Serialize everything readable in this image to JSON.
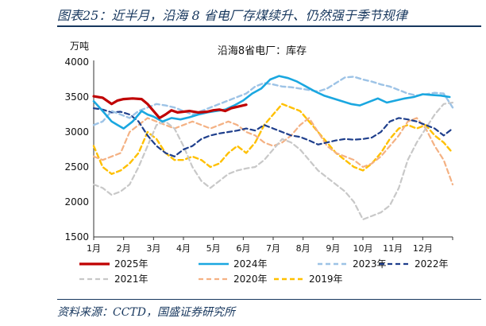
{
  "header": {
    "title": "图表25：近半月，沿海 8 省电厂存煤续升、仍然强于季节规律"
  },
  "footer": {
    "source": "资料来源：CCTD，国盛证券研究所"
  },
  "chart_data": {
    "type": "line",
    "title": "沿海8省电厂：库存",
    "ylabel": "万吨",
    "ylim": [
      1500,
      4000
    ],
    "yticks": [
      "1500",
      "2000",
      "2500",
      "3000",
      "3500",
      "4000"
    ],
    "categories": [
      "1月",
      "2月",
      "3月",
      "4月",
      "5月",
      "6月",
      "7月",
      "8月",
      "9月",
      "10月",
      "11月",
      "12月"
    ],
    "series": [
      {
        "name": "2025年",
        "color": "#c00000",
        "dash": "solid",
        "width": 3.2,
        "points": [
          [
            0,
            3510
          ],
          [
            0.3,
            3490
          ],
          [
            0.6,
            3400
          ],
          [
            0.8,
            3450
          ],
          [
            1.0,
            3470
          ],
          [
            1.3,
            3480
          ],
          [
            1.6,
            3470
          ],
          [
            1.8,
            3400
          ],
          [
            2.0,
            3300
          ],
          [
            2.2,
            3200
          ],
          [
            2.4,
            3250
          ],
          [
            2.6,
            3310
          ],
          [
            2.8,
            3280
          ],
          [
            3.0,
            3290
          ],
          [
            3.2,
            3300
          ],
          [
            3.5,
            3280
          ],
          [
            3.8,
            3290
          ],
          [
            4.0,
            3310
          ],
          [
            4.2,
            3320
          ],
          [
            4.4,
            3300
          ],
          [
            4.6,
            3340
          ],
          [
            4.9,
            3370
          ],
          [
            5.1,
            3390
          ]
        ]
      },
      {
        "name": "2024年",
        "color": "#1aa7e0",
        "dash": "solid",
        "width": 2.6,
        "points": [
          [
            0,
            3440
          ],
          [
            0.3,
            3300
          ],
          [
            0.6,
            3150
          ],
          [
            0.8,
            3100
          ],
          [
            1.0,
            3050
          ],
          [
            1.3,
            3150
          ],
          [
            1.6,
            3300
          ],
          [
            1.8,
            3250
          ],
          [
            2.0,
            3220
          ],
          [
            2.3,
            3150
          ],
          [
            2.6,
            3200
          ],
          [
            2.9,
            3180
          ],
          [
            3.2,
            3210
          ],
          [
            3.5,
            3250
          ],
          [
            3.8,
            3280
          ],
          [
            4.1,
            3300
          ],
          [
            4.4,
            3320
          ],
          [
            4.7,
            3380
          ],
          [
            5.0,
            3450
          ],
          [
            5.3,
            3550
          ],
          [
            5.6,
            3620
          ],
          [
            5.9,
            3750
          ],
          [
            6.2,
            3800
          ],
          [
            6.5,
            3770
          ],
          [
            6.8,
            3720
          ],
          [
            7.1,
            3650
          ],
          [
            7.4,
            3580
          ],
          [
            7.7,
            3520
          ],
          [
            8.0,
            3480
          ],
          [
            8.3,
            3440
          ],
          [
            8.6,
            3400
          ],
          [
            8.9,
            3380
          ],
          [
            9.2,
            3430
          ],
          [
            9.5,
            3480
          ],
          [
            9.8,
            3420
          ],
          [
            10.1,
            3450
          ],
          [
            10.4,
            3480
          ],
          [
            10.7,
            3500
          ],
          [
            11.0,
            3540
          ],
          [
            11.3,
            3530
          ],
          [
            11.6,
            3520
          ],
          [
            11.9,
            3500
          ]
        ]
      },
      {
        "name": "2023年",
        "color": "#9dc3e6",
        "dash": "dash",
        "width": 2.4,
        "points": [
          [
            0,
            3100
          ],
          [
            0.3,
            3150
          ],
          [
            0.6,
            3300
          ],
          [
            0.9,
            3250
          ],
          [
            1.2,
            3200
          ],
          [
            1.5,
            3300
          ],
          [
            1.8,
            3350
          ],
          [
            2.1,
            3400
          ],
          [
            2.4,
            3380
          ],
          [
            2.7,
            3350
          ],
          [
            3.0,
            3300
          ],
          [
            3.3,
            3250
          ],
          [
            3.6,
            3300
          ],
          [
            3.9,
            3350
          ],
          [
            4.2,
            3400
          ],
          [
            4.5,
            3450
          ],
          [
            4.8,
            3500
          ],
          [
            5.1,
            3550
          ],
          [
            5.4,
            3650
          ],
          [
            5.7,
            3700
          ],
          [
            6.0,
            3680
          ],
          [
            6.3,
            3650
          ],
          [
            6.6,
            3640
          ],
          [
            6.9,
            3620
          ],
          [
            7.2,
            3600
          ],
          [
            7.5,
            3580
          ],
          [
            7.8,
            3620
          ],
          [
            8.1,
            3700
          ],
          [
            8.4,
            3780
          ],
          [
            8.7,
            3790
          ],
          [
            9.0,
            3750
          ],
          [
            9.3,
            3720
          ],
          [
            9.6,
            3680
          ],
          [
            9.9,
            3650
          ],
          [
            10.2,
            3600
          ],
          [
            10.5,
            3550
          ],
          [
            10.8,
            3520
          ],
          [
            11.1,
            3540
          ],
          [
            11.4,
            3560
          ],
          [
            11.7,
            3550
          ],
          [
            12.0,
            3350
          ]
        ]
      },
      {
        "name": "2022年",
        "color": "#1f3f8c",
        "dash": "dash",
        "width": 2.2,
        "points": [
          [
            0,
            3340
          ],
          [
            0.3,
            3320
          ],
          [
            0.6,
            3280
          ],
          [
            0.9,
            3290
          ],
          [
            1.2,
            3250
          ],
          [
            1.5,
            3150
          ],
          [
            1.8,
            2950
          ],
          [
            2.1,
            2800
          ],
          [
            2.4,
            2700
          ],
          [
            2.7,
            2650
          ],
          [
            3.0,
            2750
          ],
          [
            3.3,
            2800
          ],
          [
            3.6,
            2900
          ],
          [
            3.9,
            2950
          ],
          [
            4.2,
            2980
          ],
          [
            4.5,
            3000
          ],
          [
            4.8,
            3020
          ],
          [
            5.1,
            3050
          ],
          [
            5.4,
            3020
          ],
          [
            5.7,
            3100
          ],
          [
            6.0,
            3050
          ],
          [
            6.3,
            3000
          ],
          [
            6.6,
            2950
          ],
          [
            6.9,
            2930
          ],
          [
            7.2,
            2880
          ],
          [
            7.5,
            2820
          ],
          [
            7.8,
            2850
          ],
          [
            8.1,
            2880
          ],
          [
            8.4,
            2900
          ],
          [
            8.7,
            2890
          ],
          [
            9.0,
            2900
          ],
          [
            9.3,
            2920
          ],
          [
            9.6,
            3000
          ],
          [
            9.9,
            3150
          ],
          [
            10.2,
            3200
          ],
          [
            10.5,
            3180
          ],
          [
            10.8,
            3150
          ],
          [
            11.1,
            3100
          ],
          [
            11.4,
            3050
          ],
          [
            11.7,
            2950
          ],
          [
            12.0,
            3050
          ]
        ]
      },
      {
        "name": "2021年",
        "color": "#c8c8c8",
        "dash": "dash",
        "width": 2.2,
        "points": [
          [
            0,
            2250
          ],
          [
            0.3,
            2200
          ],
          [
            0.6,
            2100
          ],
          [
            0.9,
            2150
          ],
          [
            1.2,
            2250
          ],
          [
            1.5,
            2500
          ],
          [
            1.8,
            2800
          ],
          [
            2.1,
            3100
          ],
          [
            2.4,
            3150
          ],
          [
            2.7,
            3050
          ],
          [
            3.0,
            2800
          ],
          [
            3.3,
            2500
          ],
          [
            3.6,
            2300
          ],
          [
            3.9,
            2200
          ],
          [
            4.2,
            2300
          ],
          [
            4.5,
            2400
          ],
          [
            4.8,
            2450
          ],
          [
            5.1,
            2480
          ],
          [
            5.4,
            2500
          ],
          [
            5.7,
            2600
          ],
          [
            6.0,
            2750
          ],
          [
            6.3,
            2900
          ],
          [
            6.6,
            2850
          ],
          [
            6.9,
            2750
          ],
          [
            7.2,
            2600
          ],
          [
            7.5,
            2450
          ],
          [
            7.8,
            2350
          ],
          [
            8.1,
            2250
          ],
          [
            8.4,
            2150
          ],
          [
            8.7,
            2000
          ],
          [
            9.0,
            1750
          ],
          [
            9.3,
            1800
          ],
          [
            9.6,
            1850
          ],
          [
            9.9,
            1950
          ],
          [
            10.2,
            2200
          ],
          [
            10.5,
            2600
          ],
          [
            10.8,
            2850
          ],
          [
            11.1,
            3050
          ],
          [
            11.4,
            3250
          ],
          [
            11.7,
            3400
          ],
          [
            12.0,
            3420
          ]
        ]
      },
      {
        "name": "2020年",
        "color": "#f4b183",
        "dash": "dash",
        "width": 2.2,
        "points": [
          [
            0,
            2650
          ],
          [
            0.3,
            2600
          ],
          [
            0.6,
            2650
          ],
          [
            0.9,
            2700
          ],
          [
            1.2,
            3000
          ],
          [
            1.5,
            3100
          ],
          [
            1.8,
            3200
          ],
          [
            2.1,
            3150
          ],
          [
            2.4,
            3100
          ],
          [
            2.7,
            3050
          ],
          [
            3.0,
            3100
          ],
          [
            3.3,
            3150
          ],
          [
            3.6,
            3100
          ],
          [
            3.9,
            3050
          ],
          [
            4.2,
            3100
          ],
          [
            4.5,
            3150
          ],
          [
            4.8,
            3100
          ],
          [
            5.1,
            3000
          ],
          [
            5.4,
            2950
          ],
          [
            5.7,
            2850
          ],
          [
            6.0,
            2800
          ],
          [
            6.3,
            2850
          ],
          [
            6.6,
            2950
          ],
          [
            6.9,
            3100
          ],
          [
            7.2,
            3200
          ],
          [
            7.5,
            3000
          ],
          [
            7.8,
            2800
          ],
          [
            8.1,
            2700
          ],
          [
            8.4,
            2650
          ],
          [
            8.7,
            2600
          ],
          [
            9.0,
            2500
          ],
          [
            9.3,
            2550
          ],
          [
            9.6,
            2650
          ],
          [
            9.9,
            2800
          ],
          [
            10.2,
            2950
          ],
          [
            10.5,
            3150
          ],
          [
            10.8,
            3200
          ],
          [
            11.1,
            3050
          ],
          [
            11.4,
            2800
          ],
          [
            11.7,
            2600
          ],
          [
            12.0,
            2250
          ]
        ]
      },
      {
        "name": "2019年",
        "color": "#ffc000",
        "dash": "dash",
        "width": 2.4,
        "points": [
          [
            0,
            2800
          ],
          [
            0.3,
            2500
          ],
          [
            0.6,
            2400
          ],
          [
            0.9,
            2450
          ],
          [
            1.2,
            2550
          ],
          [
            1.5,
            2700
          ],
          [
            1.8,
            3000
          ],
          [
            2.1,
            2900
          ],
          [
            2.4,
            2700
          ],
          [
            2.7,
            2600
          ],
          [
            3.0,
            2600
          ],
          [
            3.3,
            2650
          ],
          [
            3.6,
            2600
          ],
          [
            3.9,
            2500
          ],
          [
            4.2,
            2550
          ],
          [
            4.5,
            2700
          ],
          [
            4.8,
            2800
          ],
          [
            5.1,
            2700
          ],
          [
            5.4,
            2850
          ],
          [
            5.7,
            3100
          ],
          [
            6.0,
            3250
          ],
          [
            6.3,
            3400
          ],
          [
            6.6,
            3350
          ],
          [
            6.9,
            3300
          ],
          [
            7.2,
            3150
          ],
          [
            7.5,
            3000
          ],
          [
            7.8,
            2850
          ],
          [
            8.1,
            2700
          ],
          [
            8.4,
            2600
          ],
          [
            8.7,
            2500
          ],
          [
            9.0,
            2450
          ],
          [
            9.3,
            2550
          ],
          [
            9.6,
            2700
          ],
          [
            9.9,
            2900
          ],
          [
            10.2,
            3050
          ],
          [
            10.5,
            3100
          ],
          [
            10.8,
            3050
          ],
          [
            11.1,
            3100
          ],
          [
            11.4,
            2950
          ],
          [
            11.7,
            2850
          ],
          [
            12.0,
            2700
          ]
        ]
      }
    ]
  }
}
